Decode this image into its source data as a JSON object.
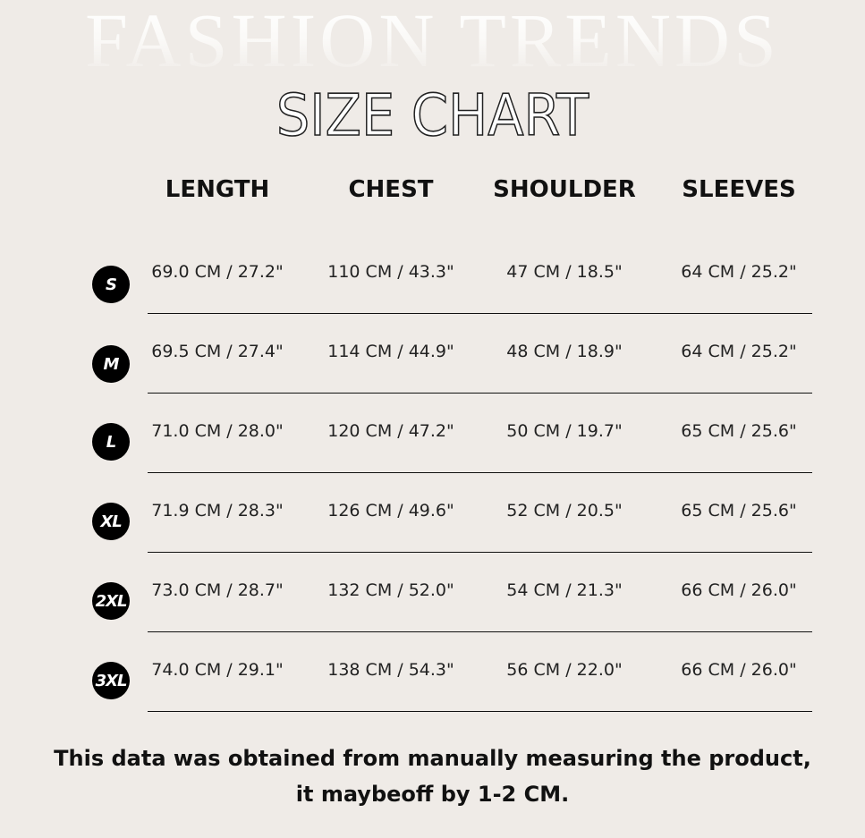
{
  "background_title": "FASHION TRENDS",
  "title": "SIZE CHART",
  "columns": [
    "LENGTH",
    "CHEST",
    "SHOULDER",
    "SLEEVES"
  ],
  "rows": [
    {
      "size": "S",
      "values": [
        "69.0 CM /  27.2\"",
        "110 CM /  43.3\"",
        "47 CM /  18.5\"",
        "64 CM /  25.2\""
      ]
    },
    {
      "size": "M",
      "values": [
        "69.5 CM /  27.4\"",
        "114 CM /  44.9\"",
        "48 CM /  18.9\"",
        "64 CM /  25.2\""
      ]
    },
    {
      "size": "L",
      "values": [
        "71.0 CM /  28.0\"",
        "120 CM /  47.2\"",
        "50 CM /  19.7\"",
        "65 CM /  25.6\""
      ]
    },
    {
      "size": "XL",
      "values": [
        "71.9 CM /  28.3\"",
        "126 CM /  49.6\"",
        "52 CM /  20.5\"",
        "65 CM /  25.6\""
      ]
    },
    {
      "size": "2XL",
      "values": [
        "73.0 CM /  28.7\"",
        "132 CM /  52.0\"",
        "54 CM /  21.3\"",
        "66 CM /  26.0\""
      ]
    },
    {
      "size": "3XL",
      "values": [
        "74.0 CM /  29.1\"",
        "138 CM /  54.3\"",
        "56 CM /  22.0\"",
        "66 CM /  26.0\""
      ]
    }
  ],
  "note": "This data was obtained from manually measuring the product, it maybeoff by 1-2 CM.",
  "colors": {
    "background": "#efebe7",
    "text": "#111111",
    "badge": "#000000"
  }
}
